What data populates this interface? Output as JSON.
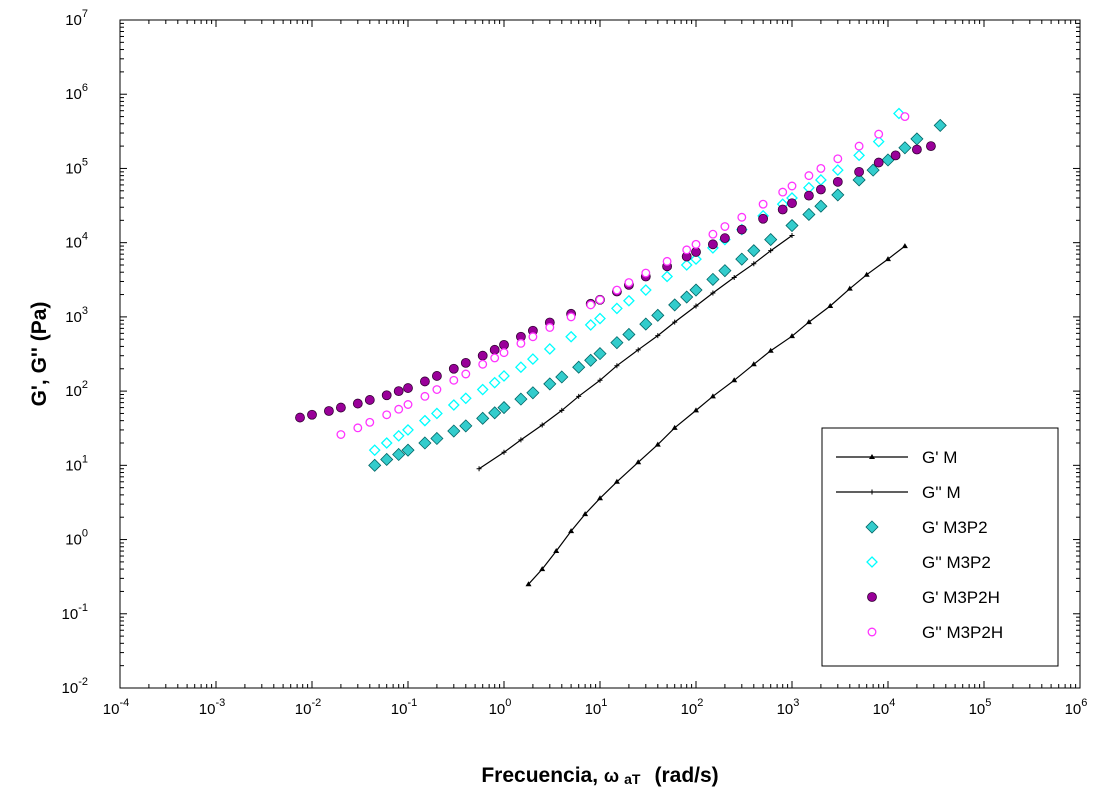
{
  "chart_data": {
    "type": "scatter",
    "xscale": "log",
    "yscale": "log",
    "xlim": [
      0.0001,
      1000000
    ],
    "ylim": [
      0.01,
      10000000
    ],
    "xlabel": "Frecuencia, ω aT  (rad/s)",
    "xlabel_main": "Frecuencia, ",
    "xlabel_omega": "ω",
    "xlabel_sub": "aT",
    "xlabel_units": "(rad/s)",
    "ylabel": "G', G'' (Pa)",
    "x_ticks": [
      {
        "base": "10",
        "exp": "-4"
      },
      {
        "base": "10",
        "exp": "-3"
      },
      {
        "base": "10",
        "exp": "-2"
      },
      {
        "base": "10",
        "exp": "-1"
      },
      {
        "base": "10",
        "exp": "0"
      },
      {
        "base": "10",
        "exp": "1"
      },
      {
        "base": "10",
        "exp": "2"
      },
      {
        "base": "10",
        "exp": "3"
      },
      {
        "base": "10",
        "exp": "4"
      },
      {
        "base": "10",
        "exp": "5"
      },
      {
        "base": "10",
        "exp": "6"
      }
    ],
    "y_ticks": [
      {
        "base": "10",
        "exp": "-2"
      },
      {
        "base": "10",
        "exp": "-1"
      },
      {
        "base": "10",
        "exp": "0"
      },
      {
        "base": "10",
        "exp": "1"
      },
      {
        "base": "10",
        "exp": "2"
      },
      {
        "base": "10",
        "exp": "3"
      },
      {
        "base": "10",
        "exp": "4"
      },
      {
        "base": "10",
        "exp": "5"
      },
      {
        "base": "10",
        "exp": "6"
      },
      {
        "base": "10",
        "exp": "7"
      }
    ],
    "grid": false,
    "legend_position": "bottom-right",
    "series": [
      {
        "name": "G' M",
        "marker": "line-small-triangle",
        "color": "#000000",
        "x": [
          1.8,
          2.5,
          3.5,
          5,
          7,
          10,
          15,
          25,
          40,
          60,
          100,
          150,
          250,
          400,
          600,
          1000,
          1500,
          2500,
          4000,
          6000,
          10000,
          15000
        ],
        "y": [
          0.25,
          0.4,
          0.7,
          1.3,
          2.2,
          3.6,
          6,
          11,
          19,
          32,
          55,
          85,
          140,
          230,
          350,
          550,
          850,
          1400,
          2400,
          3700,
          6000,
          9000
        ]
      },
      {
        "name": "G'' M",
        "marker": "line-small-cross",
        "color": "#000000",
        "x": [
          0.55,
          1,
          1.5,
          2.5,
          4,
          6,
          10,
          15,
          25,
          40,
          60,
          100,
          150,
          250,
          400,
          600,
          1000
        ],
        "y": [
          9,
          15,
          22,
          35,
          55,
          85,
          140,
          220,
          360,
          560,
          850,
          1400,
          2100,
          3400,
          5200,
          7800,
          12500
        ]
      },
      {
        "name": "G' M3P2",
        "marker": "filled-diamond",
        "color": "#33cccc",
        "x": [
          0.045,
          0.06,
          0.08,
          0.1,
          0.15,
          0.2,
          0.3,
          0.4,
          0.6,
          0.8,
          1,
          1.5,
          2,
          3,
          4,
          6,
          8,
          10,
          15,
          20,
          30,
          40,
          60,
          80,
          100,
          150,
          200,
          300,
          400,
          600,
          1000,
          1500,
          2000,
          3000,
          5000,
          7000,
          10000,
          15000,
          20000,
          35000
        ],
        "y": [
          10,
          12,
          14,
          16,
          20,
          23,
          29,
          34,
          43,
          51,
          60,
          78,
          95,
          125,
          155,
          210,
          260,
          320,
          450,
          580,
          800,
          1050,
          1450,
          1850,
          2300,
          3200,
          4200,
          6000,
          7800,
          11000,
          17000,
          24000,
          31000,
          44000,
          70000,
          95000,
          130000,
          190000,
          250000,
          380000
        ]
      },
      {
        "name": "G'' M3P2",
        "marker": "open-diamond",
        "color": "#00ffff",
        "x": [
          0.045,
          0.06,
          0.08,
          0.1,
          0.15,
          0.2,
          0.3,
          0.4,
          0.6,
          0.8,
          1,
          1.5,
          2,
          3,
          5,
          8,
          10,
          15,
          20,
          30,
          50,
          80,
          100,
          150,
          200,
          300,
          500,
          800,
          1000,
          1500,
          2000,
          3000,
          5000,
          8000,
          13000
        ],
        "y": [
          16,
          20,
          25,
          30,
          40,
          50,
          65,
          80,
          105,
          130,
          160,
          210,
          270,
          370,
          540,
          780,
          950,
          1300,
          1650,
          2300,
          3500,
          5000,
          6000,
          8500,
          11000,
          15000,
          23000,
          33000,
          40000,
          55000,
          70000,
          95000,
          150000,
          230000,
          550000
        ]
      },
      {
        "name": "G' M3P2H",
        "marker": "filled-circle",
        "color": "#990099",
        "x": [
          0.0075,
          0.01,
          0.015,
          0.02,
          0.03,
          0.04,
          0.06,
          0.08,
          0.1,
          0.15,
          0.2,
          0.3,
          0.4,
          0.6,
          0.8,
          1,
          1.5,
          2,
          3,
          5,
          8,
          10,
          15,
          20,
          30,
          50,
          80,
          100,
          150,
          200,
          300,
          500,
          800,
          1000,
          1500,
          2000,
          3000,
          5000,
          8000,
          12000,
          20000,
          28000
        ],
        "y": [
          44,
          48,
          54,
          60,
          68,
          76,
          88,
          100,
          110,
          135,
          160,
          200,
          240,
          300,
          360,
          420,
          540,
          650,
          840,
          1100,
          1500,
          1700,
          2200,
          2700,
          3500,
          4800,
          6500,
          7500,
          9500,
          11500,
          15000,
          21000,
          28000,
          34000,
          43000,
          52000,
          66000,
          90000,
          120000,
          150000,
          180000,
          200000
        ]
      },
      {
        "name": "G'' M3P2H",
        "marker": "open-circle",
        "color": "#ff33ff",
        "x": [
          0.02,
          0.03,
          0.04,
          0.06,
          0.08,
          0.1,
          0.15,
          0.2,
          0.3,
          0.4,
          0.6,
          0.8,
          1,
          1.5,
          2,
          3,
          5,
          8,
          10,
          15,
          20,
          30,
          50,
          80,
          100,
          150,
          200,
          300,
          500,
          800,
          1000,
          1500,
          2000,
          3000,
          5000,
          8000,
          15000
        ],
        "y": [
          26,
          32,
          38,
          48,
          57,
          66,
          85,
          105,
          140,
          170,
          230,
          280,
          330,
          440,
          540,
          720,
          1000,
          1450,
          1700,
          2300,
          2900,
          3900,
          5600,
          8000,
          9500,
          13000,
          16500,
          22000,
          33000,
          48000,
          58000,
          80000,
          100000,
          135000,
          200000,
          290000,
          500000
        ]
      }
    ]
  }
}
